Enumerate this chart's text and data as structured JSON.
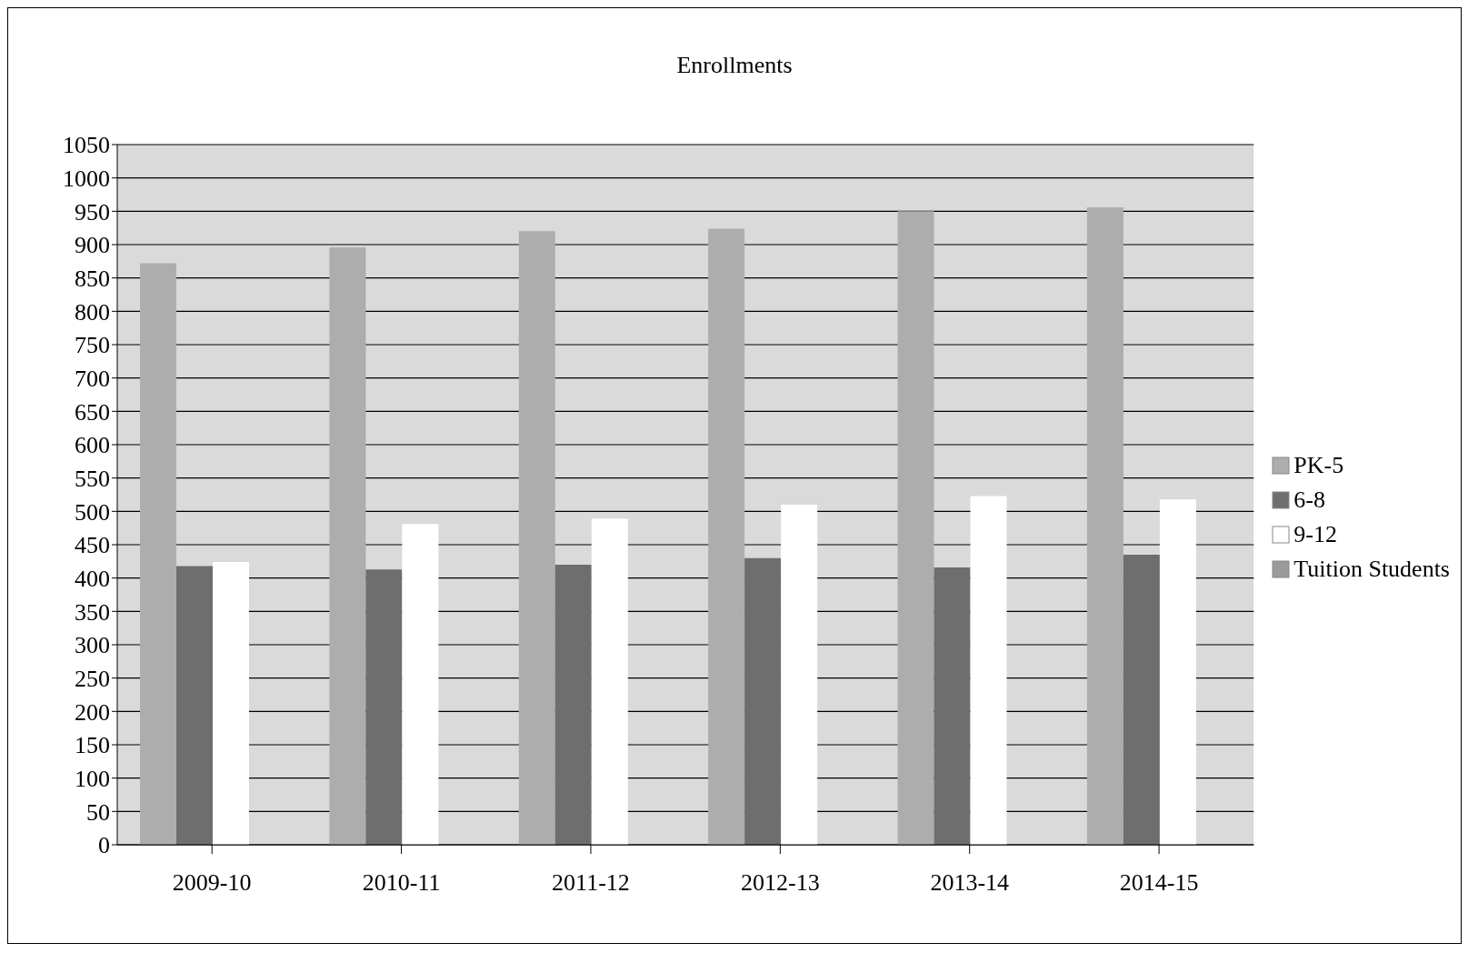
{
  "chart_data": {
    "type": "bar",
    "title": "Enrollments",
    "categories": [
      "2009-10",
      "2010-11",
      "2011-12",
      "2012-13",
      "2013-14",
      "2014-15"
    ],
    "series": [
      {
        "name": "PK-5",
        "color": "#adadad",
        "values": [
          872,
          896,
          920,
          924,
          950,
          956
        ]
      },
      {
        "name": "6-8",
        "color": "#6e6e6e",
        "values": [
          418,
          413,
          420,
          430,
          416,
          435
        ]
      },
      {
        "name": "9-12",
        "color": "#ffffff",
        "values": [
          424,
          481,
          489,
          510,
          523,
          518
        ]
      },
      {
        "name": "Tuition Students",
        "color": "#9a9a9a",
        "values": [
          0,
          0,
          0,
          0,
          0,
          0
        ]
      }
    ],
    "ylim": [
      0,
      1050
    ],
    "yticks": [
      0,
      50,
      100,
      150,
      200,
      250,
      300,
      350,
      400,
      450,
      500,
      550,
      600,
      650,
      700,
      750,
      800,
      850,
      900,
      950,
      1000,
      1050
    ],
    "grid": "y",
    "legend": "right"
  }
}
